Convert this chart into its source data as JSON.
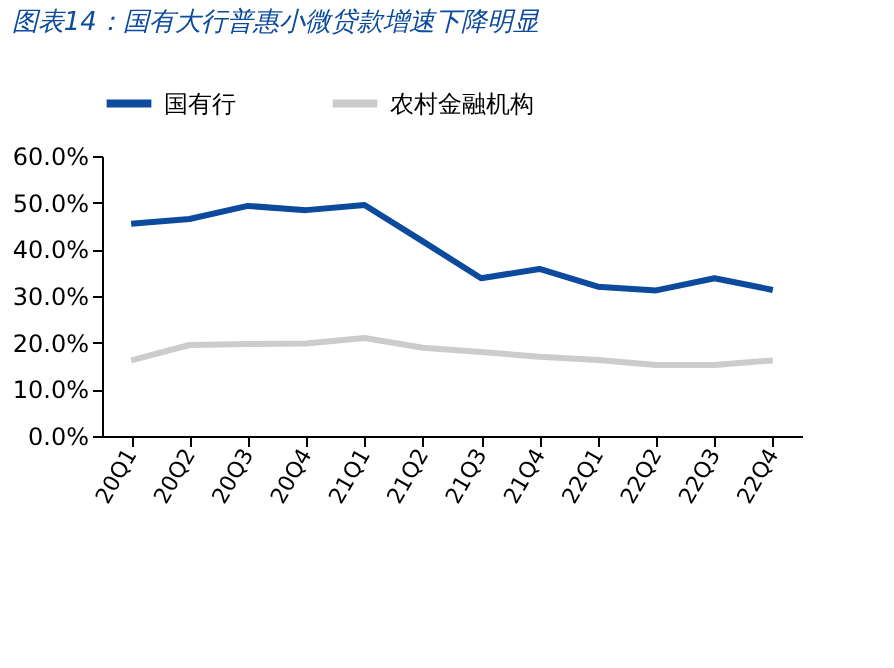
{
  "chart_data": {
    "type": "line",
    "title": "图表14：国有大行普惠小微贷款增速下降明显",
    "categories": [
      "20Q1",
      "20Q2",
      "20Q3",
      "20Q4",
      "21Q1",
      "21Q2",
      "21Q3",
      "21Q4",
      "22Q1",
      "22Q2",
      "22Q3",
      "22Q4"
    ],
    "series": [
      {
        "name": "国有行",
        "color": "#0b4a9c",
        "values": [
          45.5,
          46.5,
          49.3,
          48.4,
          49.5,
          41.7,
          33.8,
          35.8,
          32.0,
          31.2,
          33.8,
          31.3
        ]
      },
      {
        "name": "农村金融机构",
        "color": "#cccccc",
        "values": [
          16.2,
          19.5,
          19.7,
          19.8,
          21.0,
          18.9,
          18.0,
          17.0,
          16.3,
          15.2,
          15.2,
          16.2
        ]
      }
    ],
    "ylim": [
      0,
      60
    ],
    "yticks": [
      {
        "value": 0,
        "label": "0.0%"
      },
      {
        "value": 10,
        "label": "10.0%"
      },
      {
        "value": 20,
        "label": "20.0%"
      },
      {
        "value": 30,
        "label": "30.0%"
      },
      {
        "value": 40,
        "label": "40.0%"
      },
      {
        "value": 50,
        "label": "50.0%"
      },
      {
        "value": 60,
        "label": "60.0%"
      }
    ],
    "grid": false,
    "legend": "top",
    "marker": "none",
    "line_style": "solid"
  }
}
